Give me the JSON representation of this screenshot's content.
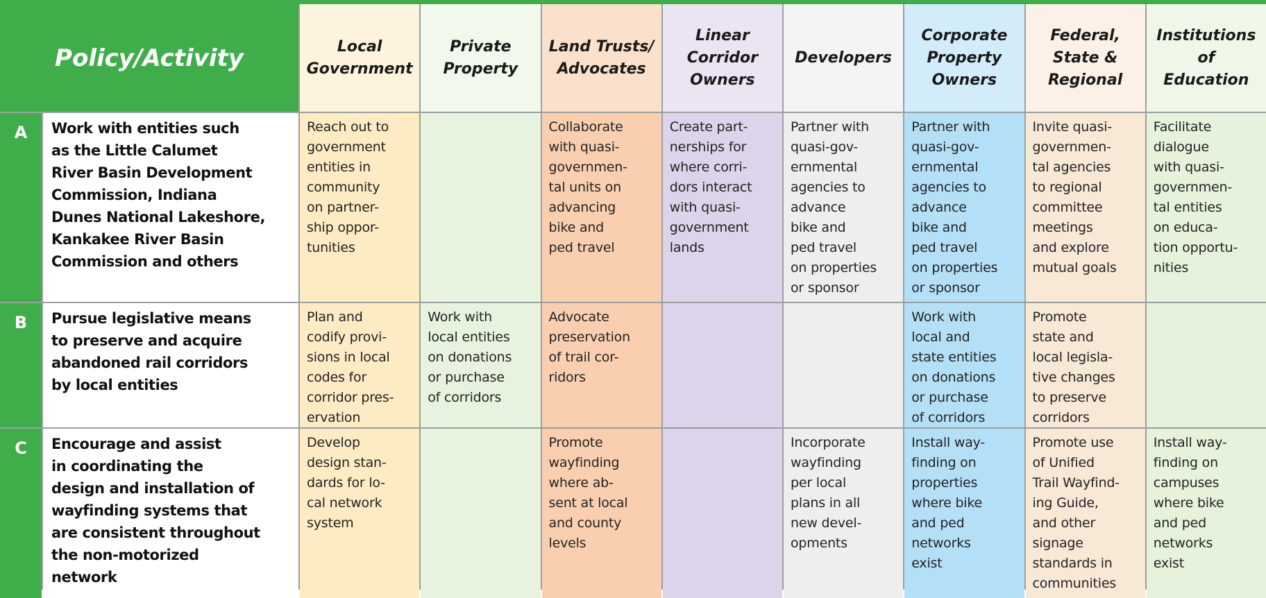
{
  "header": {
    "title": "Policy/Activity",
    "columns": [
      "Local\nGovernment",
      "Private\nProperty",
      "Land Trusts/\nAdvocates",
      "Linear\nCorridor\nOwners",
      "Developers",
      "Corporate\nProperty\nOwners",
      "Federal,\nState &\nRegional",
      "Institutions\nof\nEducation"
    ]
  },
  "rows": [
    {
      "letter": "A",
      "policy": "Work with entities such\nas the Little Calumet\nRiver Basin Development\nCommission, Indiana\nDunes National Lakeshore,\nKankakee River Basin\nCommission and others",
      "cells": [
        "Reach out to\ngovernment\nentities in\ncommunity\non partner-\nship oppor-\ntunities",
        null,
        "Collaborate\nwith quasi-\ngovernmen-\ntal units on\nadvancing\nbike and\nped travel",
        "Create part-\nnerships for\nwhere corri-\ndors interact\nwith quasi-\ngovernment\nlands",
        "Partner with\nquasi-gov-\nernmental\nagencies to\nadvance\nbike and\nped travel\non properties\nor sponsor",
        "Partner with\nquasi-gov-\nernmental\nagencies to\nadvance\nbike and\nped travel\non properties\nor sponsor",
        "Invite quasi-\ngovernmen-\ntal agencies\nto regional\ncommittee\nmeetings\nand explore\nmutual goals",
        "Facilitate\ndialogue\nwith quasi-\ngovernmen-\ntal entities\non educa-\ntion opportu-\nnities"
      ]
    },
    {
      "letter": "B",
      "policy": "Pursue legislative means\nto preserve and acquire\nabandoned rail corridors\nby local entities",
      "cells": [
        "Plan and\ncodify provi-\nsions in local\ncodes for\ncorridor pres-\nervation",
        "Work with\nlocal entities\non donations\nor purchase\nof corridors",
        "Advocate\npreservation\nof trail cor-\nridors",
        null,
        null,
        "Work with\nlocal and\nstate entities\non donations\nor purchase\nof corridors",
        "Promote\nstate and\nlocal legisla-\ntive changes\nto preserve\ncorridors",
        null
      ]
    },
    {
      "letter": "C",
      "policy": "Encourage and assist\nin coordinating the\ndesign and installation of\nwayfinding systems that\nare consistent throughout\nthe non-motorized\nnetwork",
      "cells": [
        "Develop\ndesign stan-\ndards for lo-\ncal network\nsystem",
        null,
        "Promote\nwayfinding\nwhere ab-\nsent at local\nand county\nlevels",
        null,
        "Incorporate\nwayfinding\nper local\nplans in all\nnew devel-\nopments",
        "Install way-\nfinding on\nproperties\nwhere bike\nand ped\nnetworks\nexist",
        "Promote use\nof Unified\nTrail Wayfind-\ning Guide,\nand other\nsignage\nstandards in\ncommunities",
        "Install way-\nfinding on\ncampuses\nwhere bike\nand ped\nnetworks\nexist"
      ]
    }
  ]
}
